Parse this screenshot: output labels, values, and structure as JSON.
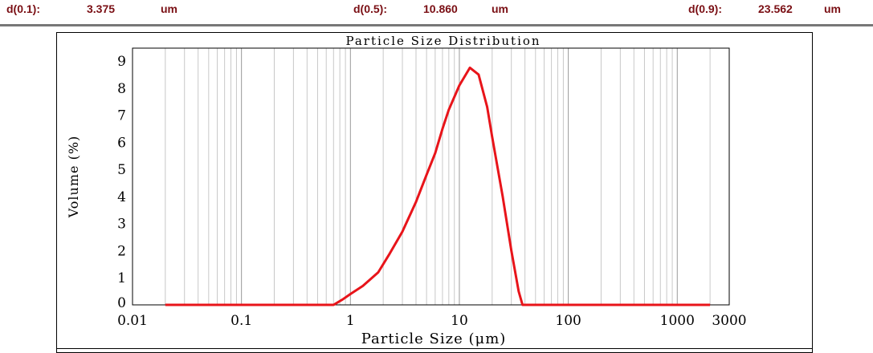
{
  "header": {
    "d10": {
      "label": "d(0.1):",
      "value": "3.375",
      "unit": "um"
    },
    "d50": {
      "label": "d(0.5):",
      "value": "10.860",
      "unit": "um"
    },
    "d90": {
      "label": "d(0.9):",
      "value": "23.562",
      "unit": "um"
    }
  },
  "chart_data": {
    "type": "line",
    "title": "Particle Size Distribution",
    "xlabel": "Particle Size (μm)",
    "ylabel": "Volume (%)",
    "xscale": "log",
    "xlim": [
      0.01,
      3000
    ],
    "ylim": [
      0,
      9
    ],
    "xticks": [
      "0.01",
      "0.1",
      "1",
      "10",
      "100",
      "1000",
      "3000"
    ],
    "yticks": [
      "0",
      "1",
      "2",
      "3",
      "4",
      "5",
      "6",
      "7",
      "8",
      "9"
    ],
    "grid": "vertical",
    "color": "#e8141a",
    "x": [
      0.02,
      0.1,
      0.5,
      0.7,
      0.85,
      1,
      1.3,
      1.8,
      2.3,
      3,
      4,
      5,
      6,
      7,
      8,
      10,
      12.5,
      15,
      18,
      20,
      25,
      30,
      35,
      38,
      50,
      100,
      1000,
      2000
    ],
    "y": [
      0,
      0,
      0,
      0,
      0.2,
      0.4,
      0.7,
      1.2,
      1.9,
      2.7,
      3.8,
      4.8,
      5.6,
      6.5,
      7.2,
      8.1,
      8.75,
      8.5,
      7.3,
      6.2,
      4.0,
      2.0,
      0.5,
      0,
      0,
      0,
      0,
      0
    ]
  }
}
